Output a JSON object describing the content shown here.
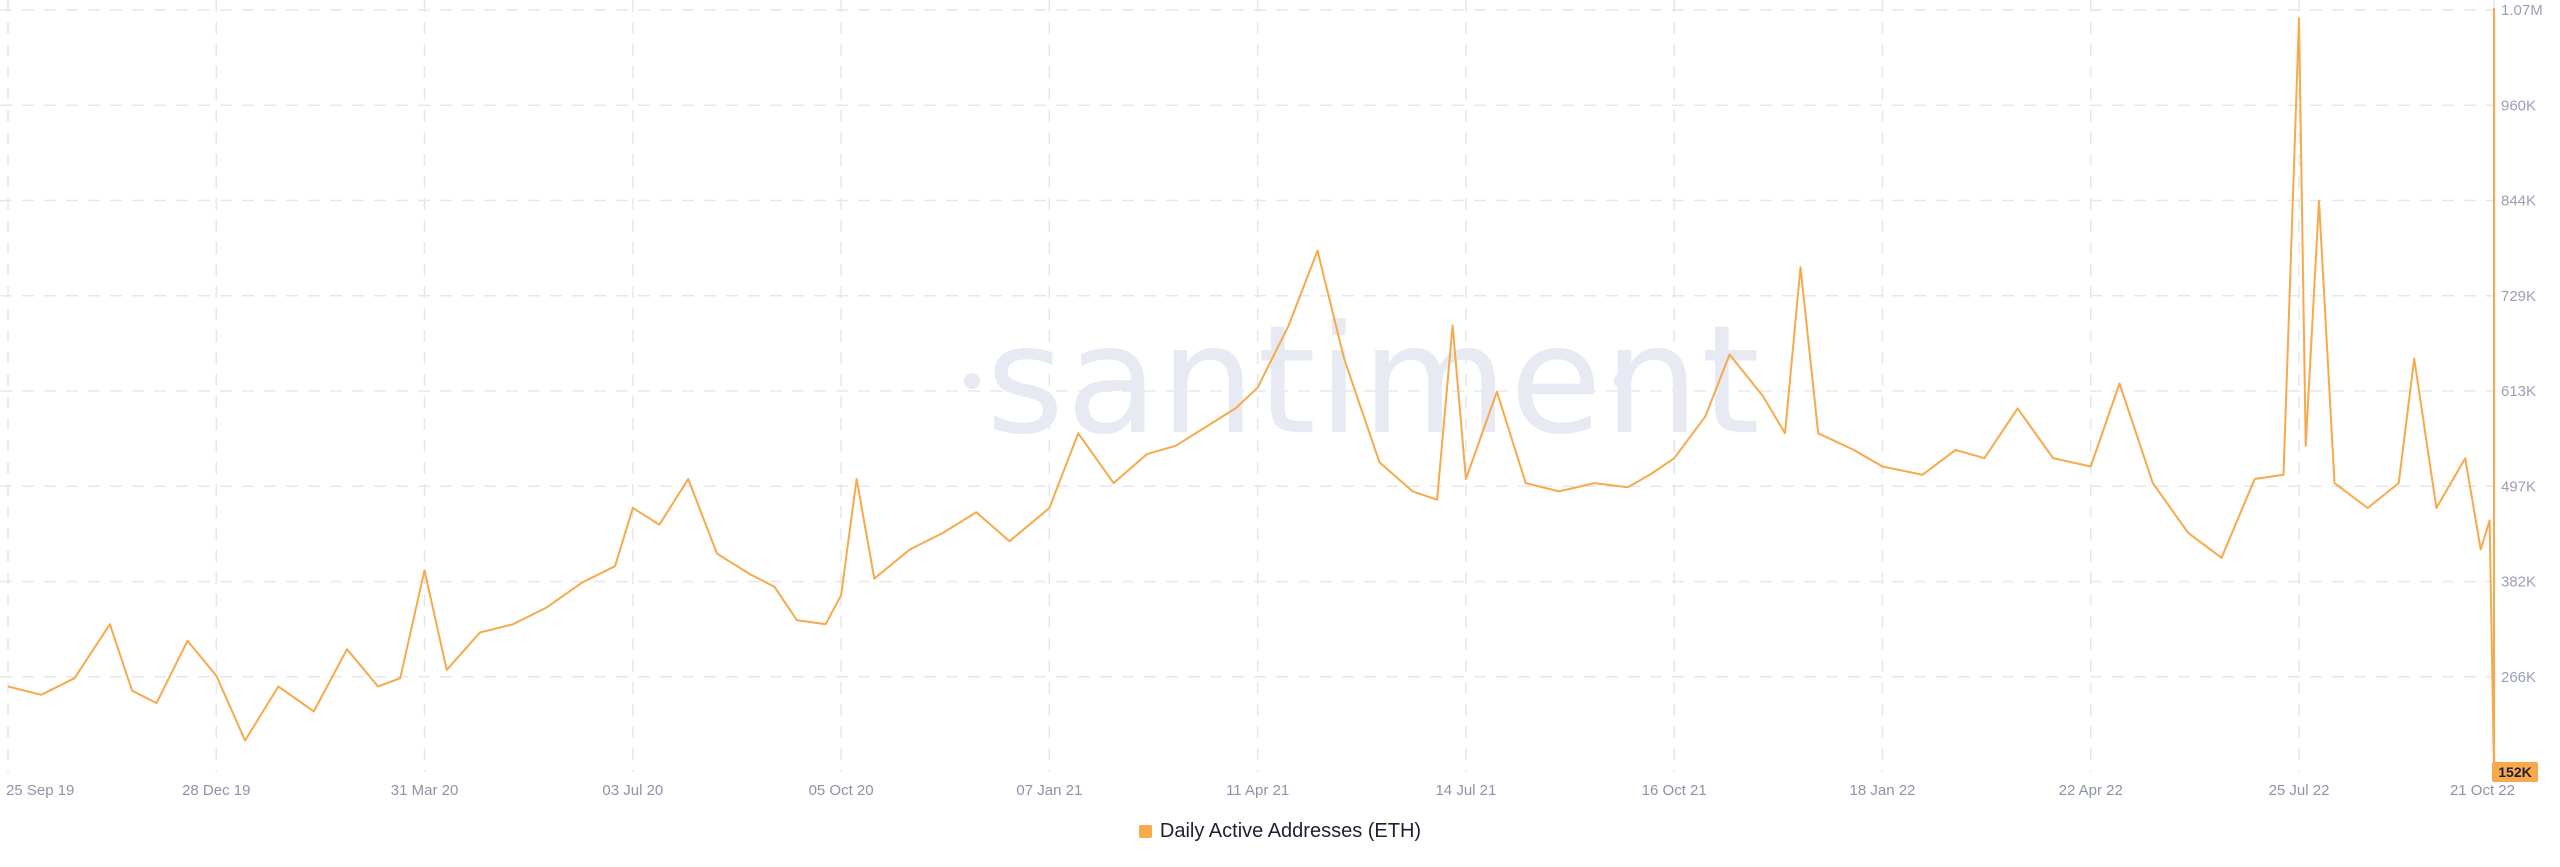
{
  "watermark": "santiment",
  "legend": {
    "label": "Daily Active Addresses (ETH)"
  },
  "colors": {
    "series": "#f7a94b",
    "grid": "#e6e7ee",
    "badge": "#f7a94b"
  },
  "chart_data": {
    "type": "line",
    "title": "",
    "xlabel": "",
    "ylabel": "",
    "x_range": [
      "2019-09-25",
      "2022-10-21"
    ],
    "ylim": [
      152000,
      1070000
    ],
    "y_ticks": [
      "1.07M",
      "960K",
      "844K",
      "729K",
      "613K",
      "497K",
      "382K",
      "266K"
    ],
    "latest_value_label": "152K",
    "x_ticks": [
      {
        "date": "2019-09-25",
        "label": "25 Sep 19"
      },
      {
        "date": "2019-12-28",
        "label": "28 Dec 19"
      },
      {
        "date": "2020-03-31",
        "label": "31 Mar 20"
      },
      {
        "date": "2020-07-03",
        "label": "03 Jul 20"
      },
      {
        "date": "2020-10-05",
        "label": "05 Oct 20"
      },
      {
        "date": "2021-01-07",
        "label": "07 Jan 21"
      },
      {
        "date": "2021-04-11",
        "label": "11 Apr 21"
      },
      {
        "date": "2021-07-14",
        "label": "14 Jul 21"
      },
      {
        "date": "2021-10-16",
        "label": "16 Oct 21"
      },
      {
        "date": "2022-01-18",
        "label": "18 Jan 22"
      },
      {
        "date": "2022-04-22",
        "label": "22 Apr 22"
      },
      {
        "date": "2022-07-25",
        "label": "25 Jul 22"
      },
      {
        "date": "2022-10-21",
        "label": "21 Oct 22"
      }
    ],
    "series": [
      {
        "name": "Daily Active Addresses (ETH)",
        "points": [
          [
            "2019-09-25",
            255000
          ],
          [
            "2019-10-10",
            245000
          ],
          [
            "2019-10-25",
            265000
          ],
          [
            "2019-11-10",
            330000
          ],
          [
            "2019-11-20",
            250000
          ],
          [
            "2019-12-01",
            235000
          ],
          [
            "2019-12-15",
            310000
          ],
          [
            "2019-12-28",
            268000
          ],
          [
            "2020-01-10",
            190000
          ],
          [
            "2020-01-25",
            255000
          ],
          [
            "2020-02-10",
            225000
          ],
          [
            "2020-02-25",
            300000
          ],
          [
            "2020-03-10",
            255000
          ],
          [
            "2020-03-20",
            265000
          ],
          [
            "2020-03-31",
            395000
          ],
          [
            "2020-04-10",
            275000
          ],
          [
            "2020-04-25",
            320000
          ],
          [
            "2020-05-10",
            330000
          ],
          [
            "2020-05-25",
            350000
          ],
          [
            "2020-06-10",
            380000
          ],
          [
            "2020-06-25",
            400000
          ],
          [
            "2020-07-03",
            470000
          ],
          [
            "2020-07-15",
            450000
          ],
          [
            "2020-07-28",
            505000
          ],
          [
            "2020-08-10",
            415000
          ],
          [
            "2020-08-25",
            390000
          ],
          [
            "2020-09-05",
            375000
          ],
          [
            "2020-09-15",
            335000
          ],
          [
            "2020-09-28",
            330000
          ],
          [
            "2020-10-05",
            365000
          ],
          [
            "2020-10-12",
            505000
          ],
          [
            "2020-10-20",
            385000
          ],
          [
            "2020-11-05",
            420000
          ],
          [
            "2020-11-20",
            440000
          ],
          [
            "2020-12-05",
            465000
          ],
          [
            "2020-12-20",
            430000
          ],
          [
            "2021-01-07",
            470000
          ],
          [
            "2021-01-20",
            560000
          ],
          [
            "2021-02-05",
            500000
          ],
          [
            "2021-02-20",
            535000
          ],
          [
            "2021-03-05",
            545000
          ],
          [
            "2021-03-20",
            570000
          ],
          [
            "2021-04-01",
            590000
          ],
          [
            "2021-04-11",
            615000
          ],
          [
            "2021-04-25",
            690000
          ],
          [
            "2021-05-08",
            780000
          ],
          [
            "2021-05-20",
            650000
          ],
          [
            "2021-06-05",
            525000
          ],
          [
            "2021-06-20",
            490000
          ],
          [
            "2021-07-01",
            480000
          ],
          [
            "2021-07-08",
            690000
          ],
          [
            "2021-07-14",
            505000
          ],
          [
            "2021-07-28",
            610000
          ],
          [
            "2021-08-10",
            500000
          ],
          [
            "2021-08-25",
            490000
          ],
          [
            "2021-09-10",
            500000
          ],
          [
            "2021-09-25",
            495000
          ],
          [
            "2021-10-05",
            510000
          ],
          [
            "2021-10-16",
            530000
          ],
          [
            "2021-10-30",
            580000
          ],
          [
            "2021-11-10",
            655000
          ],
          [
            "2021-11-25",
            605000
          ],
          [
            "2021-12-05",
            560000
          ],
          [
            "2021-12-12",
            760000
          ],
          [
            "2021-12-20",
            560000
          ],
          [
            "2022-01-05",
            540000
          ],
          [
            "2022-01-18",
            520000
          ],
          [
            "2022-02-05",
            510000
          ],
          [
            "2022-02-20",
            540000
          ],
          [
            "2022-03-05",
            530000
          ],
          [
            "2022-03-20",
            590000
          ],
          [
            "2022-04-05",
            530000
          ],
          [
            "2022-04-22",
            520000
          ],
          [
            "2022-05-05",
            620000
          ],
          [
            "2022-05-20",
            500000
          ],
          [
            "2022-06-05",
            440000
          ],
          [
            "2022-06-20",
            410000
          ],
          [
            "2022-07-05",
            505000
          ],
          [
            "2022-07-18",
            510000
          ],
          [
            "2022-07-25",
            1060000
          ],
          [
            "2022-07-28",
            545000
          ],
          [
            "2022-08-03",
            840000
          ],
          [
            "2022-08-10",
            500000
          ],
          [
            "2022-08-25",
            470000
          ],
          [
            "2022-09-08",
            500000
          ],
          [
            "2022-09-15",
            650000
          ],
          [
            "2022-09-25",
            470000
          ],
          [
            "2022-10-08",
            530000
          ],
          [
            "2022-10-15",
            420000
          ],
          [
            "2022-10-19",
            455000
          ],
          [
            "2022-10-21",
            152000
          ]
        ]
      }
    ]
  }
}
